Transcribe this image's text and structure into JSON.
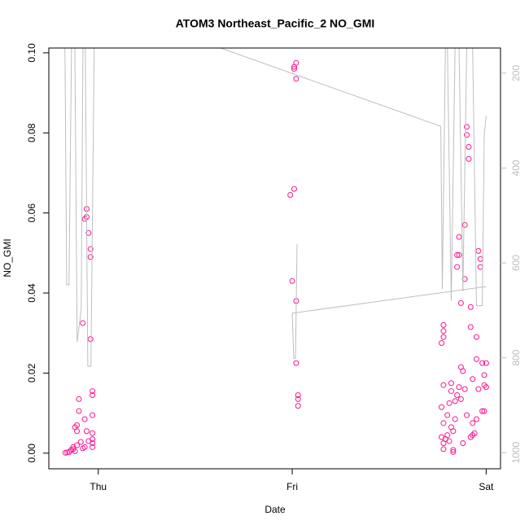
{
  "chart_data": {
    "type": "scatter",
    "title": "ATOM3 Northeast_Pacific_2 NO_GMI",
    "x_label": "Date",
    "y_label": "NO_GMI",
    "xlim": [
      -0.255,
      2.074
    ],
    "xticks": [
      {
        "value": 0,
        "label": "Thu"
      },
      {
        "value": 1,
        "label": "Fri"
      },
      {
        "value": 2,
        "label": "Sat"
      }
    ],
    "ylim": [
      -0.0039,
      0.1012
    ],
    "yticks": [
      {
        "value": 0,
        "label": "0.00"
      },
      {
        "value": 0.02,
        "label": "0.02"
      },
      {
        "value": 0.04,
        "label": "0.04"
      },
      {
        "value": 0.06,
        "label": "0.06"
      },
      {
        "value": 0.08,
        "label": "0.08"
      },
      {
        "value": 0.1,
        "label": "0.10"
      }
    ],
    "y2lim": [
      1034,
      147
    ],
    "y2ticks": [
      200,
      400,
      600,
      800,
      1000
    ],
    "series": [
      {
        "type": "scatter",
        "color": "#ff1493",
        "x": [
          -0.17,
          -0.16,
          -0.15,
          -0.14,
          -0.13,
          -0.12,
          -0.13,
          -0.11,
          -0.12,
          -0.11,
          -0.11,
          -0.1,
          -0.1,
          -0.09,
          -0.08,
          -0.07,
          -0.08,
          -0.07,
          -0.07,
          -0.06,
          -0.06,
          -0.05,
          -0.04,
          -0.04,
          -0.04,
          -0.03,
          -0.03,
          -0.03,
          -0.03,
          -0.03,
          -0.06,
          -0.05,
          -0.03,
          -0.03,
          0.99,
          1.01,
          1.0,
          1.02,
          1.02,
          1.03,
          1.03,
          1.03,
          1.01,
          1.02,
          1.01,
          1.02,
          1.78,
          1.78,
          1.78,
          1.77,
          1.78,
          1.77,
          1.78,
          1.77,
          1.78,
          1.78,
          1.79,
          1.8,
          1.81,
          1.82,
          1.8,
          1.81,
          1.82,
          1.82,
          1.83,
          1.83,
          1.84,
          1.85,
          1.85,
          1.85,
          1.86,
          1.86,
          1.87,
          1.87,
          1.88,
          1.89,
          1.89,
          1.9,
          1.9,
          1.91,
          1.91,
          1.92,
          1.92,
          1.93,
          1.93,
          1.93,
          1.94,
          1.95,
          1.95,
          1.96,
          1.97,
          1.97,
          1.98,
          1.99,
          1.99,
          2.0,
          1.98,
          1.99,
          1.86,
          1.87,
          1.84,
          1.83,
          1.88,
          1.9,
          1.95,
          1.96,
          2.0,
          1.89,
          1.92
        ],
        "values": [
          0.0001,
          0.0002,
          0.0003,
          0.0008,
          0.001,
          0.0005,
          0.0015,
          0.002,
          0.0065,
          0.007,
          0.0055,
          0.0135,
          0.0105,
          0.0028,
          0.0012,
          0.0015,
          0.0325,
          0.0085,
          0.0585,
          0.059,
          0.061,
          0.055,
          0.051,
          0.049,
          0.0285,
          0.0145,
          0.0155,
          0.0095,
          0.0035,
          0.0015,
          0.0055,
          0.003,
          0.0025,
          0.005,
          0.0645,
          0.066,
          0.043,
          0.038,
          0.0225,
          0.0145,
          0.0135,
          0.0118,
          0.0965,
          0.0975,
          0.096,
          0.0935,
          0.032,
          0.0305,
          0.029,
          0.0275,
          0.017,
          0.0115,
          0.0075,
          0.004,
          0.0025,
          0.001,
          0.0035,
          0.0045,
          0.003,
          0.0065,
          0.0095,
          0.0125,
          0.0155,
          0.0175,
          0.0008,
          0.0003,
          0.013,
          0.0145,
          0.0465,
          0.0495,
          0.0495,
          0.054,
          0.0375,
          0.0215,
          0.0205,
          0.0435,
          0.057,
          0.0815,
          0.0795,
          0.0765,
          0.0735,
          0.0315,
          0.0365,
          0.0185,
          0.0075,
          0.0045,
          0.005,
          0.0235,
          0.029,
          0.0505,
          0.0485,
          0.0465,
          0.0225,
          0.0195,
          0.017,
          0.0165,
          0.0105,
          0.0105,
          0.0165,
          0.0135,
          0.0085,
          0.0055,
          0.0025,
          0.0095,
          0.0085,
          0.016,
          0.0225,
          0.016,
          0.004
        ]
      },
      {
        "type": "line",
        "axis": "y2",
        "color": "#bebebe",
        "x": [
          -0.172,
          -0.163,
          -0.151,
          -0.138,
          -0.121,
          -0.109,
          -0.088,
          -0.079,
          -0.067,
          -0.054,
          -0.038,
          -0.021,
          0.582,
          1.766,
          1.774,
          1.79,
          1.8,
          1.82,
          1.84,
          1.86,
          1.88,
          1.9,
          1.93,
          1.95,
          1.98,
          1.99,
          2.0,
          null,
          1.0,
          1.008,
          1.017,
          1.025,
          null,
          1.0,
          2.0
        ],
        "values": [
          140,
          646,
          646,
          140,
          140,
          767,
          698,
          140,
          140,
          818,
          818,
          140,
          140,
          312,
          655,
          140,
          140,
          680,
          140,
          140,
          660,
          140,
          140,
          690,
          690,
          330,
          290,
          null,
          706,
          801,
          801,
          560,
          null,
          706,
          650
        ]
      }
    ]
  }
}
